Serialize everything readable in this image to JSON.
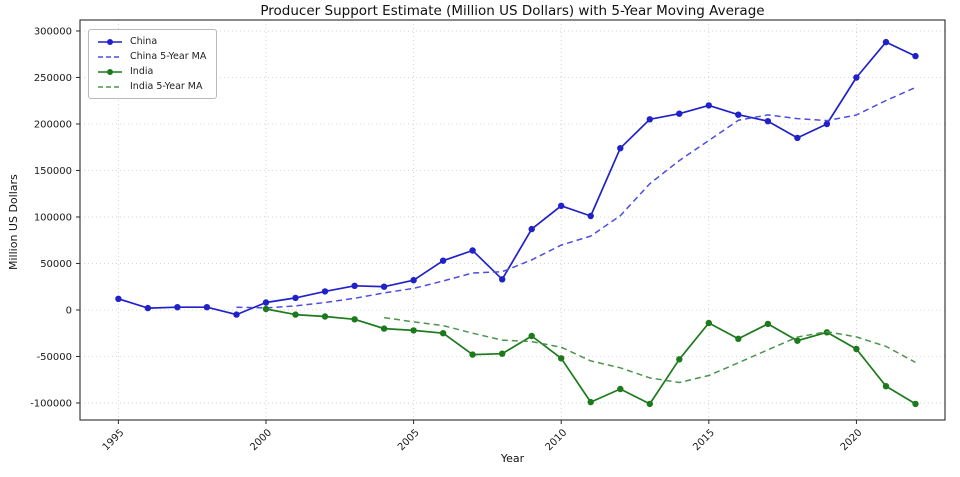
{
  "figure": {
    "background": "#ffffff",
    "frame_color": "#2b2b2b",
    "grid_color": "#c9c9c9",
    "tick_label_color": "#1a1a1a"
  },
  "chart_data": {
    "type": "line",
    "title": "Producer Support Estimate (Million US Dollars) with 5-Year Moving Average",
    "xlabel": "Year",
    "ylabel": "Million US Dollars",
    "xlim": [
      1993.7,
      2023.0
    ],
    "ylim": [
      -118300,
      311800
    ],
    "x_ticks": [
      1995,
      2000,
      2005,
      2010,
      2015,
      2020
    ],
    "y_ticks": [
      300000,
      250000,
      200000,
      150000,
      100000,
      50000,
      0,
      -50000,
      -100000
    ],
    "grid": true,
    "grid_style": "dotted",
    "legend_position": "upper-left",
    "series": [
      {
        "name": "China",
        "color": "#2121c8",
        "style": "solid",
        "marker": "circle",
        "years": [
          1995,
          1996,
          1997,
          1998,
          1999,
          2000,
          2001,
          2002,
          2003,
          2004,
          2005,
          2006,
          2007,
          2008,
          2009,
          2010,
          2011,
          2012,
          2013,
          2014,
          2015,
          2016,
          2017,
          2018,
          2019,
          2020,
          2021,
          2022
        ],
        "values": [
          12000,
          2000,
          3000,
          3000,
          -5000,
          8000,
          13000,
          20000,
          26000,
          25000,
          32000,
          53000,
          64000,
          33000,
          87000,
          112000,
          101000,
          174000,
          205000,
          211000,
          220000,
          210000,
          203000,
          185000,
          200000,
          250000,
          288000,
          273000
        ]
      },
      {
        "name": "China 5-Year MA",
        "color": "#4d4de0",
        "style": "dashed",
        "marker": "none",
        "years": [
          1999,
          2000,
          2001,
          2002,
          2003,
          2004,
          2005,
          2006,
          2007,
          2008,
          2009,
          2010,
          2011,
          2012,
          2013,
          2014,
          2015,
          2016,
          2017,
          2018,
          2019,
          2020,
          2021,
          2022
        ],
        "values": [
          3000,
          2200,
          4400,
          8000,
          12600,
          18400,
          23200,
          31200,
          39800,
          41200,
          53800,
          69800,
          79400,
          101400,
          135800,
          160600,
          182200,
          204000,
          209800,
          205800,
          203600,
          209600,
          225200,
          239200
        ]
      },
      {
        "name": "India",
        "color": "#1c7a1c",
        "style": "solid",
        "marker": "circle",
        "years": [
          2000,
          2001,
          2002,
          2003,
          2004,
          2005,
          2006,
          2007,
          2008,
          2009,
          2010,
          2011,
          2012,
          2013,
          2014,
          2015,
          2016,
          2017,
          2018,
          2019,
          2020,
          2021,
          2022
        ],
        "values": [
          1000,
          -5000,
          -7000,
          -10000,
          -20000,
          -22000,
          -25000,
          -48000,
          -47000,
          -28000,
          -52000,
          -99000,
          -85000,
          -101000,
          -53000,
          -14000,
          -31000,
          -15000,
          -33000,
          -24000,
          -42000,
          -82000,
          -101000
        ]
      },
      {
        "name": "India 5-Year MA",
        "color": "#4d934d",
        "style": "dashed",
        "marker": "none",
        "years": [
          2004,
          2005,
          2006,
          2007,
          2008,
          2009,
          2010,
          2011,
          2012,
          2013,
          2014,
          2015,
          2016,
          2017,
          2018,
          2019,
          2020,
          2021,
          2022
        ],
        "values": [
          -8200,
          -12800,
          -16800,
          -25000,
          -32400,
          -34000,
          -40000,
          -54800,
          -62200,
          -73000,
          -78000,
          -70400,
          -56800,
          -42800,
          -29200,
          -23400,
          -29000,
          -39200,
          -56400
        ]
      }
    ]
  }
}
